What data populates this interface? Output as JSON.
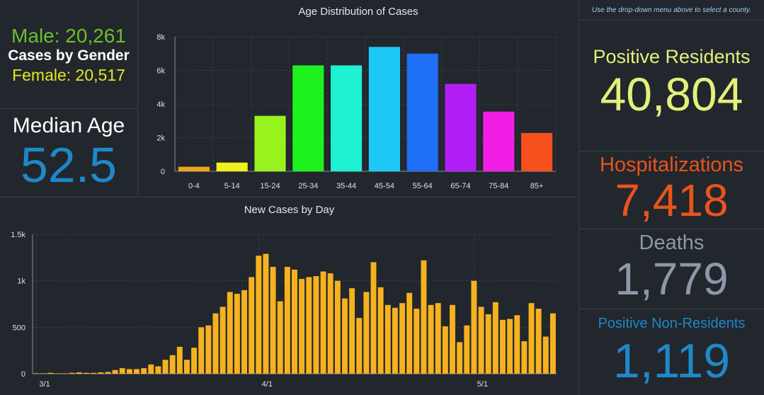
{
  "gender": {
    "male": "Male: 20,261",
    "title": "Cases by Gender",
    "female": "Female: 20,517"
  },
  "median": {
    "label": "Median Age",
    "value": "52.5"
  },
  "notice": "Use the drop-down menu above to select a county.",
  "kpis": {
    "positive_residents": {
      "label": "Positive Residents",
      "value": "40,804",
      "color": "#e3f07a"
    },
    "hospitalizations": {
      "label": "Hospitalizations",
      "value": "7,418",
      "color": "#e8541c"
    },
    "deaths": {
      "label": "Deaths",
      "value": "1,779",
      "color": "#8d98a8"
    },
    "non_residents": {
      "label": "Positive Non-Residents",
      "value": "1,119",
      "color": "#1e88c8"
    }
  },
  "chart_data": [
    {
      "type": "bar",
      "title": "Age Distribution of Cases",
      "categories": [
        "0-4",
        "5-14",
        "15-24",
        "25-34",
        "35-44",
        "45-54",
        "55-64",
        "65-74",
        "75-84",
        "85+"
      ],
      "values": [
        270,
        520,
        3300,
        6300,
        6300,
        7400,
        7000,
        5200,
        3550,
        2280
      ],
      "colors": [
        "#f2a41e",
        "#f0f01e",
        "#98f21e",
        "#1ef21e",
        "#1ef2d2",
        "#1ec8f6",
        "#1e6ef6",
        "#b21ef6",
        "#f21ee6",
        "#f6501e"
      ],
      "yticks": [
        "0",
        "2k",
        "4k",
        "6k",
        "8k"
      ],
      "ylim": [
        0,
        8000
      ],
      "grid": true
    },
    {
      "type": "bar",
      "title": "New Cases by Day",
      "color": "#f6b21e",
      "xticks": [
        "3/1",
        "4/1",
        "5/1"
      ],
      "yticks": [
        "0",
        "500",
        "1k",
        "1.5k"
      ],
      "ylim": [
        0,
        1500
      ],
      "grid": true,
      "values": [
        5,
        5,
        10,
        5,
        5,
        10,
        15,
        10,
        10,
        15,
        20,
        40,
        60,
        50,
        50,
        60,
        100,
        80,
        150,
        200,
        290,
        150,
        280,
        500,
        520,
        650,
        720,
        880,
        860,
        900,
        1040,
        1270,
        1290,
        1150,
        780,
        1150,
        1120,
        1020,
        1040,
        1050,
        1100,
        1080,
        1000,
        810,
        920,
        600,
        880,
        1200,
        930,
        740,
        710,
        760,
        870,
        700,
        1220,
        740,
        760,
        510,
        740,
        340,
        520,
        1000,
        720,
        640,
        770,
        580,
        590,
        630,
        350,
        760,
        700,
        400,
        650
      ]
    }
  ]
}
